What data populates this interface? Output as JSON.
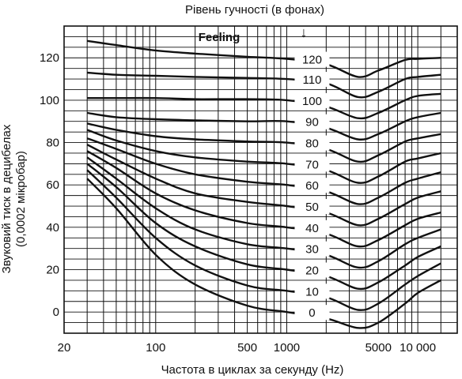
{
  "chart_data": {
    "type": "line",
    "title": "Рівень гучності (в фонах)",
    "title_arrow": "↓",
    "xlabel": "Частота в циклах за секунду (Hz)",
    "ylabel_line1": "Звуковий тиск в децибелах",
    "ylabel_line2": "(0,0002 мікробар)",
    "x_scale": "log",
    "xlim": [
      20,
      20000
    ],
    "ylim": [
      -10,
      135
    ],
    "grid": true,
    "x_ticks": [
      {
        "value": 20,
        "label": "20"
      },
      {
        "value": 100,
        "label": "100"
      },
      {
        "value": 500,
        "label": "500"
      },
      {
        "value": 1000,
        "label": "1000"
      },
      {
        "value": 5000,
        "label": "5000"
      },
      {
        "value": 10000,
        "label": "10 000"
      }
    ],
    "y_ticks": [
      {
        "value": 0,
        "label": "0"
      },
      {
        "value": 20,
        "label": "20"
      },
      {
        "value": 40,
        "label": "40"
      },
      {
        "value": 60,
        "label": "60"
      },
      {
        "value": 80,
        "label": "80"
      },
      {
        "value": 100,
        "label": "100"
      },
      {
        "value": 120,
        "label": "120"
      }
    ],
    "x_gridlines": [
      30,
      40,
      50,
      60,
      70,
      80,
      90,
      100,
      200,
      300,
      400,
      500,
      600,
      700,
      800,
      900,
      1000,
      2000,
      3000,
      4000,
      5000,
      6000,
      7000,
      8000,
      9000,
      10000,
      15000
    ],
    "y_gridlines": [
      -10,
      -5,
      0,
      5,
      10,
      15,
      20,
      25,
      30,
      35,
      40,
      45,
      50,
      55,
      60,
      65,
      70,
      75,
      80,
      85,
      90,
      95,
      100,
      105,
      110,
      115,
      120,
      125,
      130
    ],
    "annotation_feeling": "Feeling",
    "x": [
      30,
      50,
      100,
      200,
      500,
      1000,
      2000,
      3500,
      5000,
      8000,
      10000,
      15000
    ],
    "series": [
      {
        "label": "120",
        "values": [
          128,
          126,
          123.5,
          122,
          120.5,
          119.5,
          117,
          111,
          114,
          119,
          119.5,
          120
        ]
      },
      {
        "label": "110",
        "values": [
          113,
          112,
          111.5,
          111,
          110.5,
          110,
          108,
          101.5,
          104,
          110,
          111,
          112
        ]
      },
      {
        "label": "100",
        "values": [
          101,
          101,
          101,
          100.5,
          100.5,
          100,
          97,
          91.5,
          94,
          100,
          102,
          103
        ]
      },
      {
        "label": "90",
        "values": [
          94,
          92,
          91,
          90.5,
          90,
          90,
          87,
          81.5,
          84,
          90,
          92,
          94
        ]
      },
      {
        "label": "80",
        "values": [
          89,
          86,
          83,
          81.5,
          80.5,
          80,
          77,
          71,
          74,
          80.5,
          82,
          84
        ]
      },
      {
        "label": "70",
        "values": [
          86,
          81,
          76,
          73,
          71,
          70,
          67,
          61,
          64,
          71,
          72.5,
          75
        ]
      },
      {
        "label": "60",
        "values": [
          82,
          77,
          70,
          65,
          61.5,
          60,
          57,
          51,
          54,
          61,
          63,
          66
        ]
      },
      {
        "label": "50",
        "values": [
          79,
          72,
          63,
          56,
          52,
          50,
          47,
          41,
          44,
          51,
          54,
          57
        ]
      },
      {
        "label": "40",
        "values": [
          76,
          68,
          56,
          48,
          42,
          40,
          37,
          31,
          34,
          41,
          44,
          47
        ]
      },
      {
        "label": "30",
        "values": [
          73,
          63,
          49,
          39,
          32,
          30,
          27,
          21,
          24,
          32,
          35,
          39
        ]
      },
      {
        "label": "20",
        "values": [
          70,
          59,
          42,
          31,
          22.5,
          20,
          17,
          11,
          14,
          22,
          26,
          31
        ]
      },
      {
        "label": "10",
        "values": [
          67,
          54,
          35,
          22,
          12.5,
          10,
          7,
          1,
          4,
          13,
          17,
          23
        ]
      },
      {
        "label": "0",
        "values": [
          63,
          49,
          27,
          13,
          3,
          0,
          -3,
          -7.5,
          -5,
          4,
          9,
          15
        ]
      }
    ]
  }
}
